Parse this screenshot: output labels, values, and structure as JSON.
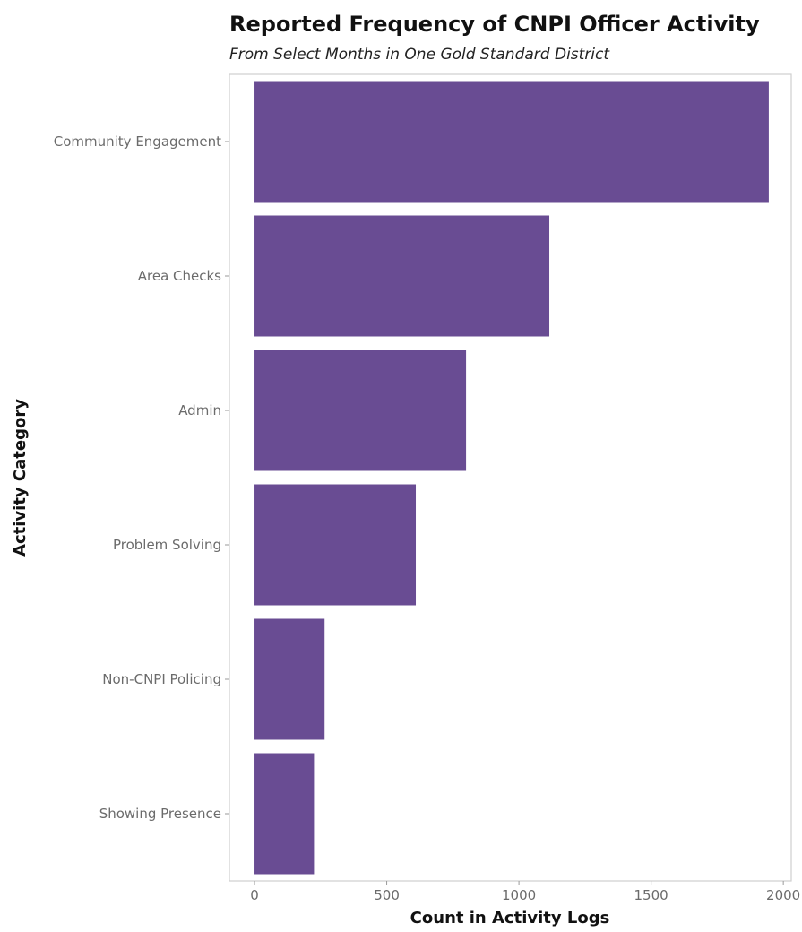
{
  "chart_data": {
    "type": "bar",
    "orientation": "horizontal",
    "title": "Reported Frequency of CNPI Officer Activity",
    "subtitle": "From Select Months in One Gold Standard District",
    "xlabel": "Count in Activity Logs",
    "ylabel": "Activity Category",
    "categories": [
      "Community Engagement",
      "Area Checks",
      "Admin",
      "Problem Solving",
      "Non-CNPI Policing",
      "Showing Presence"
    ],
    "values": [
      1945,
      1115,
      800,
      610,
      265,
      225
    ],
    "xlim": [
      -95,
      2030
    ],
    "xticks": [
      0,
      500,
      1000,
      1500,
      2000
    ],
    "grid": false,
    "legend": "none",
    "bar_color": "#694c93"
  }
}
